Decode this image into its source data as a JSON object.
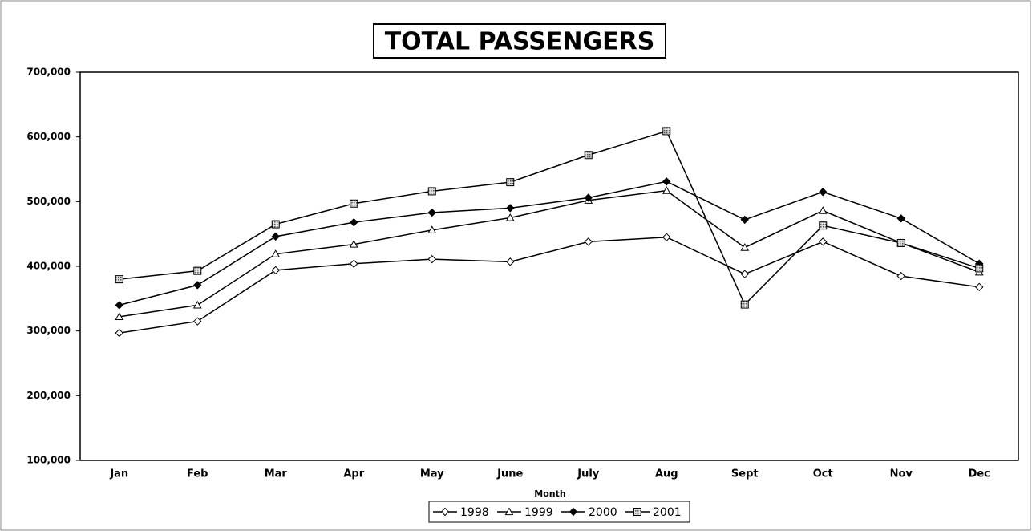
{
  "chart_data": {
    "type": "line",
    "title": "TOTAL PASSENGERS",
    "x_label": "Month",
    "categories": [
      "Jan",
      "Feb",
      "Mar",
      "Apr",
      "May",
      "June",
      "July",
      "Aug",
      "Sept",
      "Oct",
      "Nov",
      "Dec"
    ],
    "series": [
      {
        "name": "1998",
        "color": "#000000",
        "marker": "diamond-open",
        "values": [
          297000,
          315000,
          394000,
          404000,
          411000,
          407000,
          438000,
          445000,
          388000,
          438000,
          385000,
          368000
        ]
      },
      {
        "name": "1999",
        "color": "#000000",
        "marker": "triangle-open",
        "values": [
          322000,
          340000,
          419000,
          434000,
          456000,
          475000,
          502000,
          517000,
          429000,
          486000,
          436000,
          391000
        ]
      },
      {
        "name": "2000",
        "color": "#000000",
        "marker": "diamond-filled",
        "values": [
          340000,
          371000,
          446000,
          468000,
          483000,
          490000,
          506000,
          531000,
          472000,
          515000,
          474000,
          404000
        ]
      },
      {
        "name": "2001",
        "color": "#000000",
        "marker": "square-hatched",
        "values": [
          380000,
          393000,
          465000,
          497000,
          516000,
          530000,
          572000,
          609000,
          341000,
          463000,
          436000,
          397000
        ]
      }
    ],
    "ylim": [
      100000,
      700000
    ],
    "yticks": [
      {
        "value": 100000,
        "label": "100,000"
      },
      {
        "value": 200000,
        "label": "200,000"
      },
      {
        "value": 300000,
        "label": "300,000"
      },
      {
        "value": 400000,
        "label": "400,000"
      },
      {
        "value": 500000,
        "label": "500,000"
      },
      {
        "value": 600000,
        "label": "600,000"
      },
      {
        "value": 700000,
        "label": "700,000"
      }
    ],
    "grid": false,
    "legend": "bottom"
  }
}
